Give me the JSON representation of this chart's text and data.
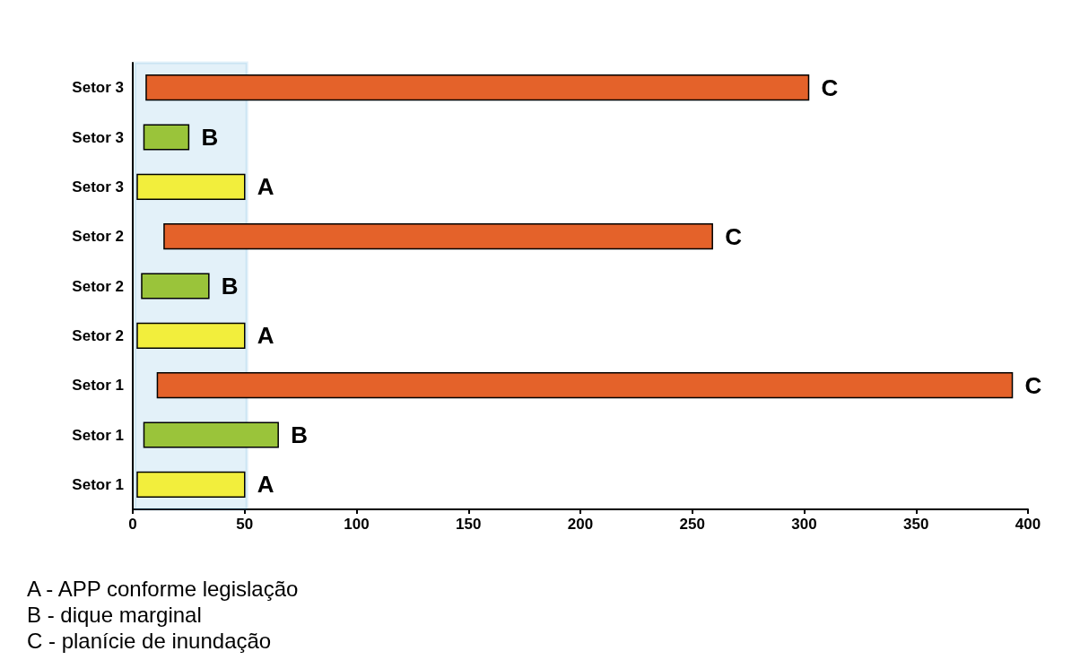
{
  "chart_data": {
    "type": "bar",
    "orientation": "horizontal",
    "categories": [
      "Setor 3",
      "Setor 3",
      "Setor 3",
      "Setor 2",
      "Setor 2",
      "Setor 2",
      "Setor 1",
      "Setor 1",
      "Setor 1"
    ],
    "base": [
      6,
      5,
      2,
      14,
      4,
      2,
      11,
      5,
      2
    ],
    "values": [
      296,
      20,
      48,
      245,
      30,
      48,
      382,
      60,
      48
    ],
    "colors": [
      "#e4622a",
      "#9ac43a",
      "#f2ee3c",
      "#e4622a",
      "#9ac43a",
      "#f2ee3c",
      "#e4622a",
      "#9ac43a",
      "#f2ee3c"
    ],
    "value_labels": [
      "C",
      "B",
      "A",
      "C",
      "B",
      "A",
      "C",
      "B",
      "A"
    ],
    "xlim": [
      0,
      400
    ],
    "xticks": [
      0,
      50,
      100,
      150,
      200,
      250,
      300,
      350,
      400
    ],
    "grid": false,
    "bands": [
      {
        "axis": "x",
        "from": 1,
        "to": 51,
        "color": "#1a8fd0"
      }
    ],
    "annotations": [
      "A - APP conforme legislação",
      "B - dique marginal",
      "C - planície de inundação"
    ]
  }
}
